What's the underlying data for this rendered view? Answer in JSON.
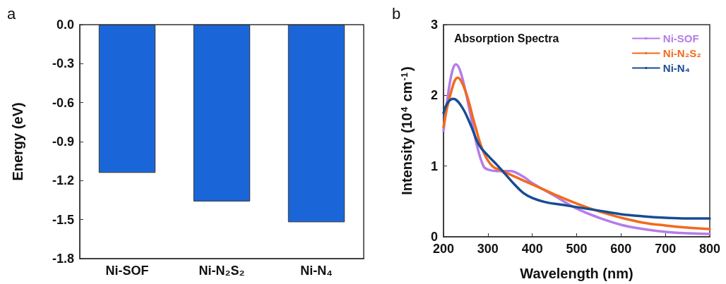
{
  "chart_data": [
    {
      "type": "bar",
      "ylabel": "Energy (eV)",
      "annotations": [
        "a"
      ],
      "categories": [
        "Ni-SOF",
        "Ni-N₂S₂",
        "Ni-N₄"
      ],
      "values": [
        -1.14,
        -1.36,
        -1.52
      ],
      "color": "#1a66d9",
      "ylim": [
        -1.8,
        0
      ],
      "yticks": [
        {
          "value": -1.8,
          "label": "-1.8"
        },
        {
          "value": -1.5,
          "label": "-1.5"
        },
        {
          "value": -1.2,
          "label": "-1.2"
        },
        {
          "value": -0.9,
          "label": "-0.9"
        },
        {
          "value": -0.6,
          "label": "-0.6"
        },
        {
          "value": -0.3,
          "label": "-0.3"
        },
        {
          "value": 0,
          "label": "0.0"
        }
      ],
      "grid": false
    },
    {
      "type": "line",
      "title": "Absorption Spectra",
      "xlabel": "Wavelength (nm)",
      "ylabel": "Intensity (10$^{4}$ cm$^{-1}$)",
      "annotations": [
        "b"
      ],
      "series": [
        {
          "name": "Ni-SOF",
          "color": "#b57bea",
          "x": [
            200,
            210,
            220,
            228,
            240,
            260,
            275,
            290,
            300,
            320,
            350,
            380,
            400,
            450,
            500,
            550,
            600,
            650,
            700,
            750,
            800
          ],
          "values": [
            1.5,
            2.0,
            2.35,
            2.44,
            2.3,
            1.75,
            1.3,
            1.0,
            0.95,
            0.93,
            0.93,
            0.85,
            0.76,
            0.58,
            0.4,
            0.27,
            0.17,
            0.11,
            0.07,
            0.05,
            0.04
          ]
        },
        {
          "name": "Ni-N₂S₂",
          "color": "#f26a1b",
          "x": [
            200,
            215,
            232,
            250,
            270,
            290,
            310,
            330,
            350,
            400,
            450,
            500,
            550,
            600,
            650,
            700,
            750,
            800
          ],
          "values": [
            1.55,
            2.0,
            2.25,
            2.05,
            1.6,
            1.2,
            1.0,
            0.94,
            0.88,
            0.74,
            0.6,
            0.47,
            0.36,
            0.27,
            0.2,
            0.16,
            0.13,
            0.11
          ]
        },
        {
          "name": "Ni-N₄",
          "color": "#174c94",
          "x": [
            200,
            210,
            222,
            240,
            260,
            280,
            300,
            320,
            340,
            360,
            380,
            400,
            430,
            470,
            500,
            550,
            600,
            650,
            700,
            750,
            800
          ],
          "values": [
            1.75,
            1.9,
            1.95,
            1.85,
            1.6,
            1.3,
            1.15,
            1.02,
            0.88,
            0.74,
            0.62,
            0.55,
            0.49,
            0.45,
            0.42,
            0.37,
            0.32,
            0.29,
            0.27,
            0.26,
            0.26
          ]
        }
      ],
      "xlim": [
        200,
        800
      ],
      "xticks": [
        200,
        300,
        400,
        500,
        600,
        700,
        800
      ],
      "ylim": [
        0,
        3
      ],
      "yticks": [
        0,
        1,
        2,
        3
      ],
      "legend": "top right",
      "grid": false,
      "marker": "none",
      "line_style": "solid"
    }
  ]
}
